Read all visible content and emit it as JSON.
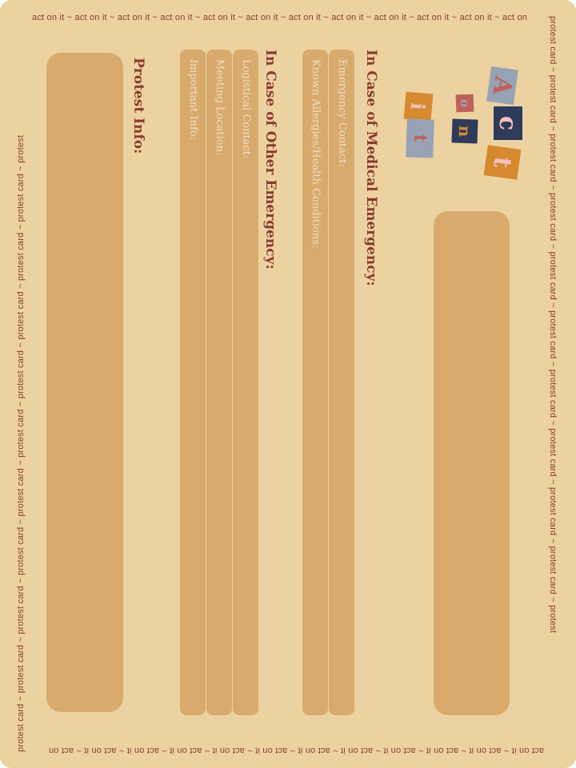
{
  "border": {
    "top": "act on it ~  act on it ~  act on it ~  act on it ~  act on it ~  act on it ~  act on it ~ act on it ~  act on it ~  act on it ~  act on it ~  act on",
    "bottom": "act on it ~  act on it ~  act on it ~  act on it ~  act on it ~  act on it ~  act on it ~ act on it ~  act on it ~  act on it ~  act on it ~  act on",
    "right": "protest card ~ protest card ~ protest card ~ protest card ~ protest card ~ protest card ~ protest card ~ protest card ~ protest card ~ protest card ~ protest",
    "left": "protest card ~ protest card ~ protest card ~ protest card ~ protest card ~ protest card ~ protest card ~ protest card ~ protest card ~ protest card ~ protest"
  },
  "logo": {
    "letters": [
      "A",
      "c",
      "t",
      "o",
      "n",
      "i",
      "t"
    ],
    "colors": {
      "pink": "#f3c2bb",
      "rose": "#c0605c",
      "navy": "#2e3b5a",
      "orange": "#d6892e",
      "grey": "#97a3b4"
    }
  },
  "medical": {
    "heading": "In Case of Medical Emergency:",
    "emergency_contact": "Emergency Contact:",
    "allergies": "Known Allergies/Health Conditions:"
  },
  "other": {
    "heading": "In Case of Other Emergency:",
    "logistical_contact": "Logistical Contact:",
    "meeting_location": "Meeting Location:",
    "important_info": "Important Info:"
  },
  "protest": {
    "heading": "Protest Info:"
  }
}
